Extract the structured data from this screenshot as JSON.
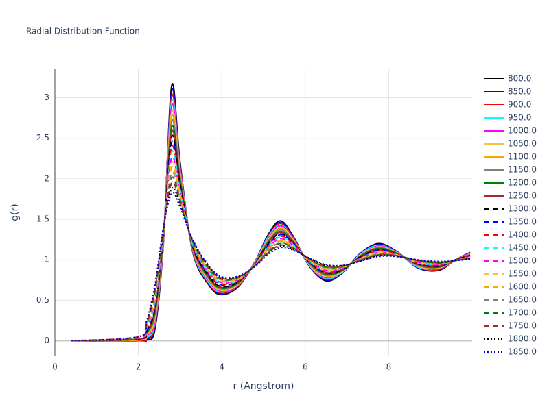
{
  "chart_data": {
    "type": "line",
    "title": "Radial Distribution Function",
    "x_label": "r (Angstrom)",
    "y_label": "g(r)",
    "x": [
      0.4,
      2.0,
      2.2,
      2.4,
      2.6,
      2.8,
      3.0,
      3.3,
      3.7,
      4.0,
      4.4,
      4.8,
      5.1,
      5.4,
      5.7,
      6.1,
      6.5,
      6.9,
      7.3,
      7.75,
      8.2,
      8.7,
      9.2,
      9.6,
      9.95
    ],
    "xlim": [
      0,
      10
    ],
    "ylim": [
      -0.19,
      3.36
    ],
    "xticks": [
      0,
      2,
      4,
      6,
      8
    ],
    "yticks": [
      0,
      0.5,
      1,
      1.5,
      2,
      2.5,
      3
    ],
    "grid": true,
    "legend": "right",
    "series": [
      {
        "name": "800.0",
        "color": "#000000",
        "dash": "solid",
        "values": [
          0,
          0,
          0.01,
          0.15,
          1.2,
          3.15,
          2.2,
          1.1,
          0.68,
          0.57,
          0.67,
          0.98,
          1.3,
          1.48,
          1.3,
          0.92,
          0.74,
          0.84,
          1.07,
          1.2,
          1.1,
          0.9,
          0.87,
          1,
          1.09
        ]
      },
      {
        "name": "850.0",
        "color": "#0000ff",
        "dash": "solid",
        "values": [
          0,
          0,
          0.02,
          0.18,
          1.21,
          3.09,
          2.17,
          1.11,
          0.69,
          0.58,
          0.68,
          0.98,
          1.29,
          1.46,
          1.29,
          0.92,
          0.75,
          0.84,
          1.07,
          1.19,
          1.1,
          0.9,
          0.88,
          1,
          1.09
        ]
      },
      {
        "name": "900.0",
        "color": "#ff0000",
        "dash": "solid",
        "values": [
          0,
          0,
          0.03,
          0.2,
          1.22,
          3.02,
          2.15,
          1.11,
          0.7,
          0.59,
          0.68,
          0.97,
          1.28,
          1.45,
          1.28,
          0.93,
          0.76,
          0.85,
          1.06,
          1.18,
          1.09,
          0.91,
          0.88,
          1,
          1.08
        ]
      },
      {
        "name": "950.0",
        "color": "#00ffff",
        "dash": "solid",
        "values": [
          0,
          0.01,
          0.04,
          0.23,
          1.23,
          2.96,
          2.12,
          1.12,
          0.71,
          0.6,
          0.69,
          0.97,
          1.27,
          1.43,
          1.27,
          0.93,
          0.77,
          0.85,
          1.06,
          1.18,
          1.09,
          0.91,
          0.89,
          1,
          1.08
        ]
      },
      {
        "name": "1000.0",
        "color": "#ff00ff",
        "dash": "solid",
        "values": [
          0,
          0.01,
          0.06,
          0.25,
          1.24,
          2.9,
          2.1,
          1.13,
          0.73,
          0.61,
          0.69,
          0.97,
          1.25,
          1.42,
          1.27,
          0.94,
          0.78,
          0.86,
          1.05,
          1.17,
          1.09,
          0.92,
          0.89,
          1,
          1.08
        ]
      },
      {
        "name": "1050.0",
        "color": "#f5c242",
        "dash": "solid",
        "values": [
          0,
          0.01,
          0.07,
          0.28,
          1.25,
          2.83,
          2.07,
          1.14,
          0.74,
          0.62,
          0.7,
          0.97,
          1.24,
          1.4,
          1.26,
          0.94,
          0.79,
          0.86,
          1.05,
          1.16,
          1.09,
          0.92,
          0.9,
          1,
          1.07
        ]
      },
      {
        "name": "1100.0",
        "color": "#ffa500",
        "dash": "solid",
        "values": [
          0,
          0.01,
          0.08,
          0.31,
          1.26,
          2.77,
          2.04,
          1.14,
          0.75,
          0.63,
          0.71,
          0.96,
          1.23,
          1.39,
          1.25,
          0.95,
          0.8,
          0.87,
          1.04,
          1.15,
          1.08,
          0.93,
          0.9,
          1,
          1.07
        ]
      },
      {
        "name": "1150.0",
        "color": "#808080",
        "dash": "solid",
        "values": [
          0,
          0.02,
          0.09,
          0.33,
          1.27,
          2.71,
          2.02,
          1.15,
          0.76,
          0.64,
          0.71,
          0.96,
          1.22,
          1.37,
          1.24,
          0.95,
          0.81,
          0.87,
          1.04,
          1.15,
          1.08,
          0.93,
          0.91,
          1,
          1.06
        ]
      },
      {
        "name": "1200.0",
        "color": "#008000",
        "dash": "solid",
        "values": [
          0,
          0.02,
          0.1,
          0.36,
          1.28,
          2.64,
          1.99,
          1.16,
          0.77,
          0.65,
          0.72,
          0.96,
          1.21,
          1.35,
          1.23,
          0.96,
          0.82,
          0.87,
          1.04,
          1.14,
          1.08,
          0.94,
          0.91,
          1,
          1.06
        ]
      },
      {
        "name": "1250.0",
        "color": "#a52a2a",
        "dash": "solid",
        "values": [
          0,
          0.02,
          0.11,
          0.39,
          1.29,
          2.58,
          1.96,
          1.16,
          0.78,
          0.66,
          0.73,
          0.95,
          1.2,
          1.34,
          1.22,
          0.96,
          0.83,
          0.88,
          1.03,
          1.13,
          1.07,
          0.94,
          0.92,
          1,
          1.06
        ]
      },
      {
        "name": "1300.0",
        "color": "#000000",
        "dash": "dash",
        "values": [
          0,
          0.02,
          0.12,
          0.41,
          1.3,
          2.52,
          1.94,
          1.17,
          0.79,
          0.67,
          0.73,
          0.95,
          1.19,
          1.32,
          1.21,
          0.97,
          0.84,
          0.88,
          1.03,
          1.12,
          1.07,
          0.95,
          0.92,
          1,
          1.05
        ]
      },
      {
        "name": "1350.0",
        "color": "#0000ff",
        "dash": "dash",
        "values": [
          0,
          0.03,
          0.14,
          0.44,
          1.3,
          2.45,
          1.91,
          1.18,
          0.81,
          0.69,
          0.74,
          0.95,
          1.17,
          1.31,
          1.21,
          0.97,
          0.84,
          0.89,
          1.02,
          1.12,
          1.07,
          0.95,
          0.93,
          0.99,
          1.05
        ]
      },
      {
        "name": "1400.0",
        "color": "#ff0000",
        "dash": "dash",
        "values": [
          0,
          0.03,
          0.15,
          0.46,
          1.31,
          2.39,
          1.89,
          1.19,
          0.82,
          0.7,
          0.74,
          0.95,
          1.16,
          1.29,
          1.2,
          0.98,
          0.85,
          0.89,
          1.02,
          1.11,
          1.07,
          0.96,
          0.93,
          0.99,
          1.04
        ]
      },
      {
        "name": "1450.0",
        "color": "#00ffff",
        "dash": "dash",
        "values": [
          0,
          0.03,
          0.16,
          0.49,
          1.32,
          2.33,
          1.86,
          1.19,
          0.83,
          0.71,
          0.75,
          0.94,
          1.15,
          1.28,
          1.19,
          0.98,
          0.86,
          0.9,
          1.01,
          1.1,
          1.06,
          0.96,
          0.94,
          0.99,
          1.04
        ]
      },
      {
        "name": "1500.0",
        "color": "#ff00ff",
        "dash": "dash",
        "values": [
          0,
          0.03,
          0.17,
          0.52,
          1.33,
          2.26,
          1.83,
          1.2,
          0.84,
          0.72,
          0.76,
          0.94,
          1.14,
          1.26,
          1.18,
          0.99,
          0.87,
          0.9,
          1.01,
          1.09,
          1.06,
          0.97,
          0.94,
          0.99,
          1.04
        ]
      },
      {
        "name": "1550.0",
        "color": "#f5c242",
        "dash": "dash",
        "values": [
          0,
          0.04,
          0.18,
          0.54,
          1.34,
          2.2,
          1.81,
          1.21,
          0.85,
          0.73,
          0.76,
          0.94,
          1.13,
          1.24,
          1.17,
          0.99,
          0.88,
          0.9,
          1.01,
          1.09,
          1.06,
          0.97,
          0.95,
          0.99,
          1.03
        ]
      },
      {
        "name": "1600.0",
        "color": "#ffa500",
        "dash": "dash",
        "values": [
          0,
          0.04,
          0.19,
          0.57,
          1.35,
          2.14,
          1.78,
          1.21,
          0.86,
          0.74,
          0.77,
          0.93,
          1.12,
          1.23,
          1.16,
          1,
          0.89,
          0.91,
          1,
          1.08,
          1.05,
          0.98,
          0.95,
          0.99,
          1.03
        ]
      },
      {
        "name": "1650.0",
        "color": "#808080",
        "dash": "dash",
        "values": [
          0,
          0.04,
          0.2,
          0.6,
          1.36,
          2.07,
          1.75,
          1.22,
          0.87,
          0.75,
          0.78,
          0.93,
          1.11,
          1.21,
          1.15,
          1,
          0.9,
          0.91,
          1,
          1.07,
          1.05,
          0.98,
          0.96,
          0.99,
          1.02
        ]
      },
      {
        "name": "1700.0",
        "color": "#008000",
        "dash": "dash",
        "values": [
          0,
          0.04,
          0.22,
          0.62,
          1.37,
          2.01,
          1.73,
          1.23,
          0.89,
          0.76,
          0.78,
          0.93,
          1.09,
          1.2,
          1.15,
          1.01,
          0.91,
          0.92,
          0.99,
          1.06,
          1.05,
          0.99,
          0.96,
          0.99,
          1.02
        ]
      },
      {
        "name": "1750.0",
        "color": "#a52a2a",
        "dash": "dash",
        "values": [
          0,
          0.05,
          0.23,
          0.65,
          1.38,
          1.95,
          1.7,
          1.24,
          0.9,
          0.77,
          0.79,
          0.93,
          1.08,
          1.18,
          1.14,
          1.01,
          0.92,
          0.92,
          0.99,
          1.06,
          1.05,
          0.99,
          0.97,
          0.99,
          1.02
        ]
      },
      {
        "name": "1800.0",
        "color": "#000000",
        "dash": "dot",
        "values": [
          0,
          0.05,
          0.24,
          0.67,
          1.39,
          1.88,
          1.68,
          1.24,
          0.91,
          0.78,
          0.79,
          0.92,
          1.07,
          1.17,
          1.13,
          1.02,
          0.93,
          0.93,
          0.98,
          1.05,
          1.04,
          1,
          0.97,
          0.99,
          1.01
        ]
      },
      {
        "name": "1850.0",
        "color": "#0000ff",
        "dash": "dot",
        "values": [
          0,
          0.05,
          0.25,
          0.7,
          1.4,
          1.82,
          1.65,
          1.25,
          0.92,
          0.79,
          0.8,
          0.92,
          1.06,
          1.15,
          1.12,
          1.02,
          0.94,
          0.93,
          0.98,
          1.04,
          1.04,
          1,
          0.98,
          0.99,
          1.01
        ]
      }
    ]
  }
}
